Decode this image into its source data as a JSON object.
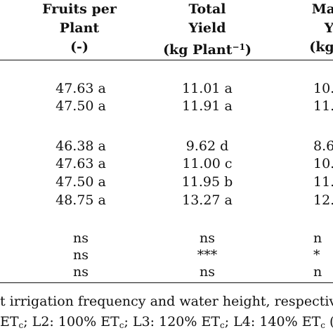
{
  "table": {
    "headers": {
      "col1": {
        "line1": "Fruits per",
        "line2": "Plant",
        "line3": "(-)"
      },
      "col2": {
        "line1": "Total",
        "line2": "Yield",
        "line3_pre": "(kg Plant",
        "line3_sup": "−1",
        "line3_post": ")"
      },
      "col3": {
        "line1": "Mark",
        "line2": "Yi",
        "line3": "(kg Pl"
      }
    },
    "rows": [
      {
        "fruits": "47.63 a",
        "total": "11.01 a",
        "market": "10."
      },
      {
        "fruits": "47.50 a",
        "total": "11.91 a",
        "market": "11."
      },
      {
        "fruits": "46.38 a",
        "total": "9.62 d",
        "market": "8.6"
      },
      {
        "fruits": "47.63 a",
        "total": "11.00 c",
        "market": "10."
      },
      {
        "fruits": "47.50 a",
        "total": "11.95 b",
        "market": "11."
      },
      {
        "fruits": "48.75 a",
        "total": "13.27 a",
        "market": "12."
      },
      {
        "fruits": "ns",
        "total": "ns",
        "market": "n"
      },
      {
        "fruits": "ns",
        "total": "***",
        "market": "*"
      },
      {
        "fruits": "ns",
        "total": "ns",
        "market": "n"
      }
    ]
  },
  "footnote": {
    "line1": "t irrigation frequency and water height, respective",
    "line2": {
      "p1": "ET",
      "s1": "c",
      "p2": "; L2: 100% ET",
      "s2": "c",
      "p3": "; L3: 120% ET",
      "s3": "c",
      "p4": "; L4: 140% ET",
      "s4": "c",
      "p5": " ("
    }
  }
}
